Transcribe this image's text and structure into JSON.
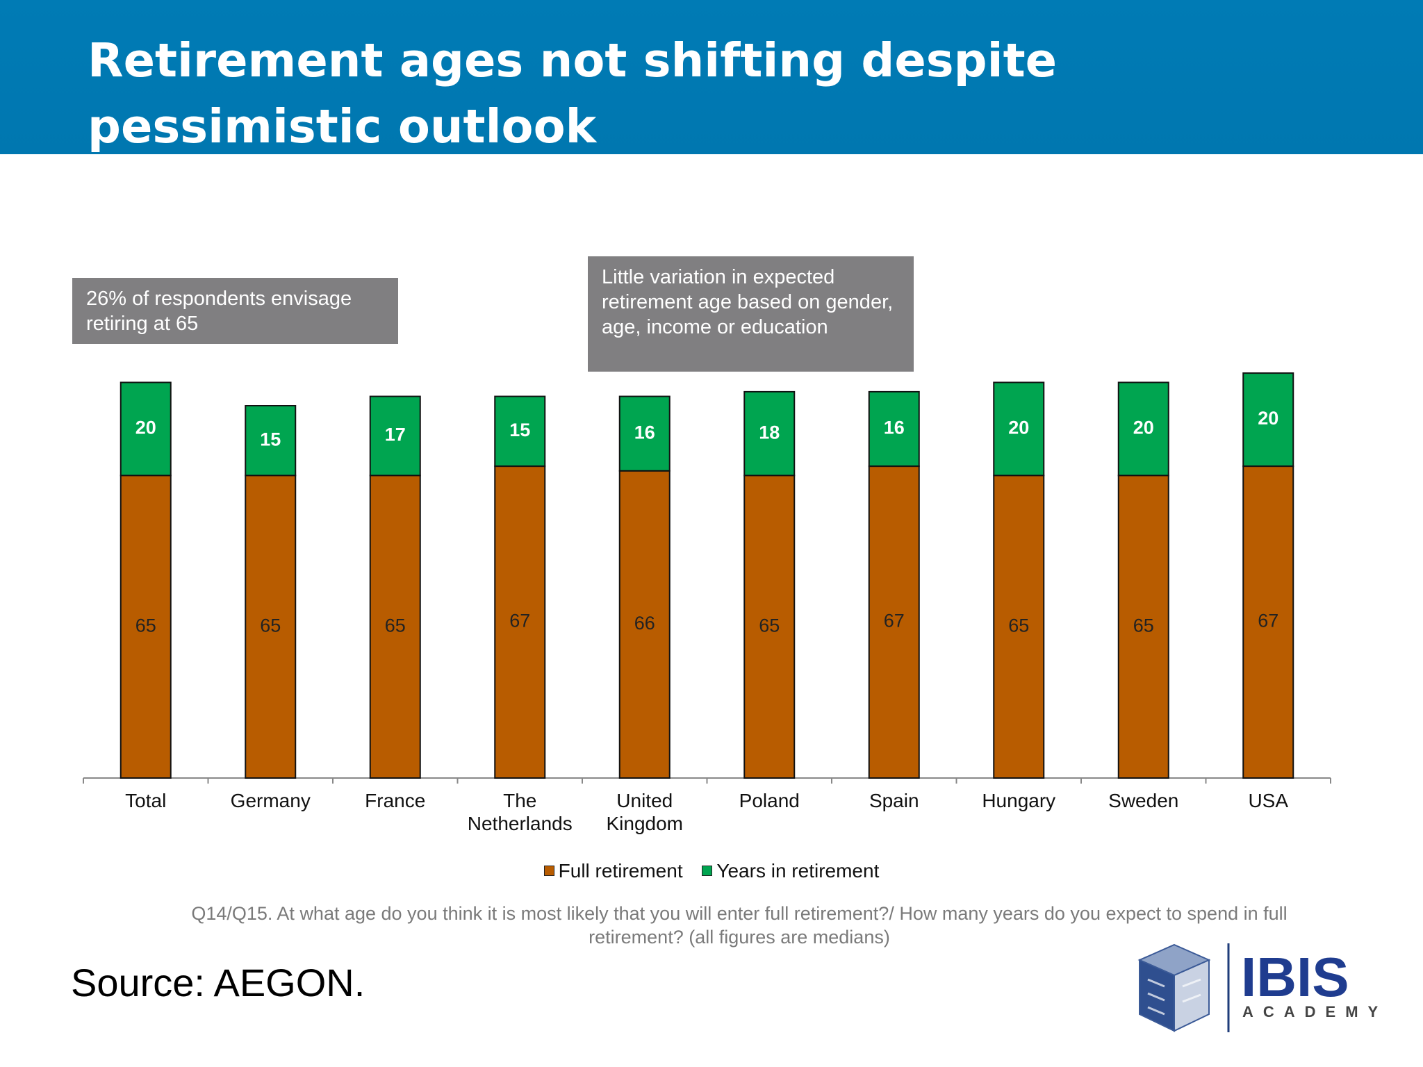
{
  "header": {
    "title": "Retirement ages not shifting despite pessimistic outlook"
  },
  "notes": {
    "left": "26% of respondents envisage retiring at 65",
    "center": "Little variation in expected retirement age based on gender, age, income or education"
  },
  "chart_data": {
    "type": "bar",
    "stacked": true,
    "categories": [
      [
        "Total"
      ],
      [
        "Germany"
      ],
      [
        "France"
      ],
      [
        "The",
        "Netherlands"
      ],
      [
        "United",
        "Kingdom"
      ],
      [
        "Poland"
      ],
      [
        "Spain"
      ],
      [
        "Hungary"
      ],
      [
        "Sweden"
      ],
      [
        "USA"
      ]
    ],
    "series": [
      {
        "name": "Full retirement",
        "color": "#b85c00",
        "values": [
          65,
          65,
          65,
          67,
          66,
          65,
          67,
          65,
          65,
          67
        ]
      },
      {
        "name": "Years in retirement",
        "color": "#00a550",
        "values": [
          20,
          15,
          17,
          15,
          16,
          18,
          16,
          20,
          20,
          20
        ]
      }
    ],
    "ylim": [
      0,
      90
    ],
    "grid": false,
    "legend": "bottom"
  },
  "question": "Q14/Q15. At what age do  you think it is most likely that you will enter full retirement?/ How many years do you expect to spend in full retirement? (all figures are medians)",
  "source": "Source: AEGON.",
  "logo": {
    "name": "IBIS",
    "tagline": "ACADEMY",
    "icon": "cube-logo-icon"
  }
}
